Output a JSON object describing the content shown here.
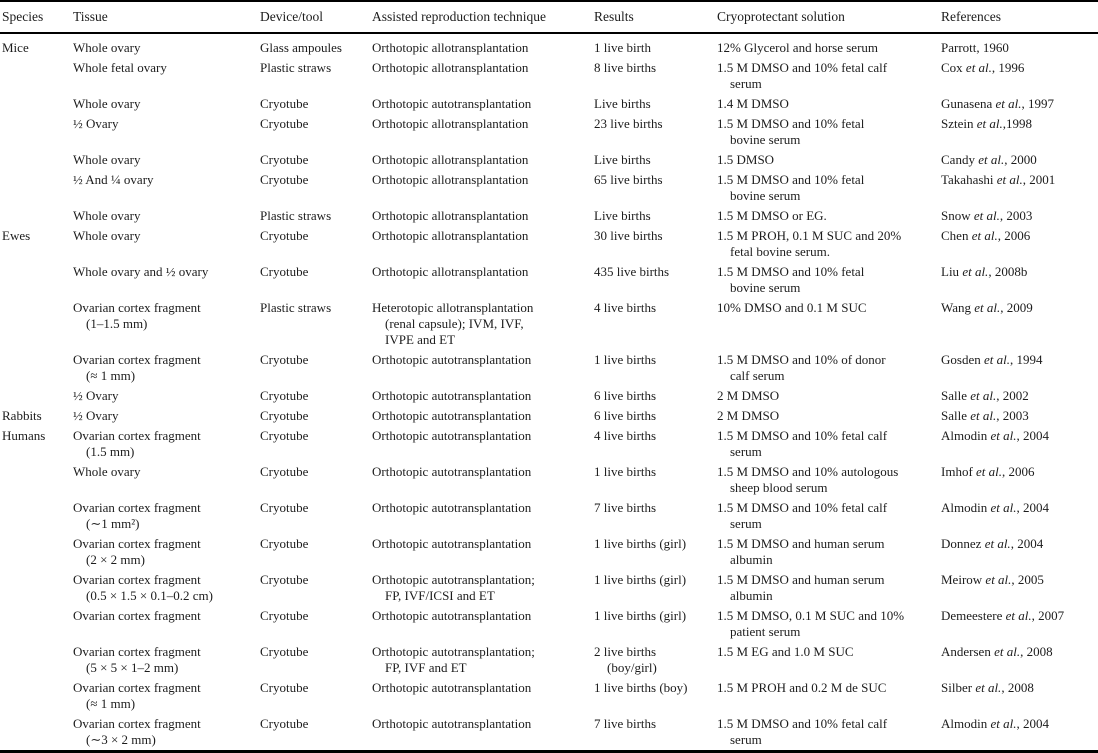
{
  "columns": [
    "Species",
    "Tissue",
    "Device/tool",
    "Assisted reproduction technique",
    "Results",
    "Cryoprotectant solution",
    "References"
  ],
  "rows": [
    {
      "species": "Mice",
      "tissue": "Whole ovary",
      "device": "Glass ampoules",
      "technique": "Orthotopic allotransplantation",
      "results": "1 live birth",
      "cryo": "12% Glycerol and horse serum",
      "ref": {
        "author": "Parrott",
        "etal": "",
        "tail": ", 1960"
      }
    },
    {
      "species": "",
      "tissue": "Whole fetal ovary",
      "device": "Plastic straws",
      "technique": "Orthotopic allotransplantation",
      "results": "8 live births",
      "cryo": "1.5 M DMSO and 10% fetal calf\nserum",
      "ref": {
        "author": "Cox",
        "etal": " et al.",
        "tail": ", 1996"
      }
    },
    {
      "species": "",
      "tissue": "Whole ovary",
      "device": "Cryotube",
      "technique": "Orthotopic autotransplantation",
      "results": "Live births",
      "cryo": "1.4 M DMSO",
      "ref": {
        "author": "Gunasena",
        "etal": " et al.",
        "tail": ", 1997"
      }
    },
    {
      "species": "",
      "tissue": "½ Ovary",
      "device": "Cryotube",
      "technique": "Orthotopic allotransplantation",
      "results": "23 live births",
      "cryo": "1.5 M DMSO and 10% fetal\nbovine serum",
      "ref": {
        "author": "Sztein",
        "etal": " et al.",
        "tail": ",1998"
      }
    },
    {
      "species": "",
      "tissue": "Whole ovary",
      "device": "Cryotube",
      "technique": "Orthotopic allotransplantation",
      "results": "Live births",
      "cryo": "1.5 DMSO",
      "ref": {
        "author": "Candy",
        "etal": " et al.",
        "tail": ", 2000"
      }
    },
    {
      "species": "",
      "tissue": "½ And ¼ ovary",
      "device": "Cryotube",
      "technique": "Orthotopic allotransplantation",
      "results": "65 live births",
      "cryo": "1.5 M DMSO and 10% fetal\nbovine serum",
      "ref": {
        "author": "Takahashi",
        "etal": " et al.",
        "tail": ", 2001"
      }
    },
    {
      "species": "",
      "tissue": "Whole ovary",
      "device": "Plastic straws",
      "technique": "Orthotopic allotransplantation",
      "results": "Live births",
      "cryo": "1.5 M DMSO or EG.",
      "ref": {
        "author": "Snow",
        "etal": " et al.",
        "tail": ", 2003"
      }
    },
    {
      "species": "Ewes",
      "tissue": "Whole ovary",
      "device": "Cryotube",
      "technique": "Orthotopic allotransplantation",
      "results": "30 live births",
      "cryo": "1.5 M PROH, 0.1 M SUC and 20%\nfetal bovine serum.",
      "ref": {
        "author": "Chen",
        "etal": " et al.",
        "tail": ", 2006"
      }
    },
    {
      "species": "",
      "tissue": "Whole ovary and ½ ovary",
      "device": "Cryotube",
      "technique": "Orthotopic allotransplantation",
      "results": "435 live births",
      "cryo": "1.5 M DMSO and 10% fetal\nbovine serum",
      "ref": {
        "author": "Liu",
        "etal": " et al.",
        "tail": ", 2008b"
      }
    },
    {
      "species": "",
      "tissue": "Ovarian cortex fragment\n(1–1.5 mm)",
      "device": "Plastic straws",
      "technique": "Heterotopic allotransplantation\n(renal capsule); IVM, IVF,\nIVPE and ET",
      "results": "4 live births",
      "cryo": "10% DMSO and 0.1 M SUC",
      "ref": {
        "author": "Wang",
        "etal": " et al.",
        "tail": ", 2009"
      }
    },
    {
      "species": "",
      "tissue": "Ovarian cortex fragment\n(≈ 1 mm)",
      "device": "Cryotube",
      "technique": "Orthotopic autotransplantation",
      "results": "1 live births",
      "cryo": "1.5 M DMSO and 10% of donor\ncalf serum",
      "ref": {
        "author": "Gosden",
        "etal": " et al.",
        "tail": ", 1994"
      }
    },
    {
      "species": "",
      "tissue": "½ Ovary",
      "device": "Cryotube",
      "technique": "Orthotopic autotransplantation",
      "results": "6 live births",
      "cryo": "2 M DMSO",
      "ref": {
        "author": "Salle",
        "etal": " et al.",
        "tail": ", 2002"
      }
    },
    {
      "species": "Rabbits",
      "tissue": "½ Ovary",
      "device": "Cryotube",
      "technique": "Orthotopic autotransplantation",
      "results": "6 live births",
      "cryo": "2 M DMSO",
      "ref": {
        "author": "Salle",
        "etal": " et al.",
        "tail": ", 2003"
      }
    },
    {
      "species": "Humans",
      "tissue": "Ovarian cortex fragment\n(1.5 mm)",
      "device": "Cryotube",
      "technique": "Orthotopic autotransplantation",
      "results": "4 live births",
      "cryo": "1.5 M DMSO and 10% fetal calf\nserum",
      "ref": {
        "author": "Almodin",
        "etal": " et al.",
        "tail": ", 2004"
      }
    },
    {
      "species": "",
      "tissue": "Whole ovary",
      "device": "Cryotube",
      "technique": "Orthotopic autotransplantation",
      "results": "1 live births",
      "cryo": "1.5 M DMSO and 10% autologous\nsheep blood serum",
      "ref": {
        "author": "Imhof",
        "etal": " et al.",
        "tail": ", 2006"
      }
    },
    {
      "species": "",
      "tissue": "Ovarian cortex fragment\n(∼1 mm²)",
      "device": "Cryotube",
      "technique": "Orthotopic autotransplantation",
      "results": "7 live births",
      "cryo": "1.5 M DMSO and 10% fetal calf\nserum",
      "ref": {
        "author": "Almodin",
        "etal": " et al.",
        "tail": ", 2004"
      }
    },
    {
      "species": "",
      "tissue": "Ovarian cortex fragment\n(2 × 2 mm)",
      "device": "Cryotube",
      "technique": "Orthotopic autotransplantation",
      "results": "1 live births (girl)",
      "cryo": "1.5 M DMSO and human serum\nalbumin",
      "ref": {
        "author": "Donnez",
        "etal": " et al.",
        "tail": ", 2004"
      }
    },
    {
      "species": "",
      "tissue": "Ovarian cortex fragment\n(0.5 × 1.5 × 0.1–0.2 cm)",
      "device": "Cryotube",
      "technique": "Orthotopic autotransplantation;\nFP, IVF/ICSI and ET",
      "results": "1 live births (girl)",
      "cryo": "1.5 M DMSO and human serum\nalbumin",
      "ref": {
        "author": "Meirow",
        "etal": " et al.",
        "tail": ", 2005"
      }
    },
    {
      "species": "",
      "tissue": "Ovarian cortex fragment",
      "device": "Cryotube",
      "technique": "Orthotopic autotransplantation",
      "results": "1 live births (girl)",
      "cryo": "1.5 M DMSO, 0.1 M SUC and 10%\npatient serum",
      "ref": {
        "author": "Demeestere",
        "etal": " et al.",
        "tail": ", 2007"
      }
    },
    {
      "species": "",
      "tissue": "Ovarian cortex fragment\n(5 × 5 × 1–2 mm)",
      "device": "Cryotube",
      "technique": "Orthotopic autotransplantation;\nFP, IVF and ET",
      "results": "2 live births\n(boy/girl)",
      "cryo": "1.5 M EG and 1.0 M SUC",
      "ref": {
        "author": "Andersen",
        "etal": " et al.",
        "tail": ", 2008"
      }
    },
    {
      "species": "",
      "tissue": "Ovarian cortex fragment\n(≈ 1 mm)",
      "device": "Cryotube",
      "technique": "Orthotopic autotransplantation",
      "results": "1 live births (boy)",
      "cryo": "1.5 M PROH and 0.2 M de SUC",
      "ref": {
        "author": "Silber",
        "etal": " et al.",
        "tail": ", 2008"
      }
    },
    {
      "species": "",
      "tissue": "Ovarian cortex fragment\n(∼3 × 2 mm)",
      "device": "Cryotube",
      "technique": "Orthotopic autotransplantation",
      "results": "7 live births",
      "cryo": "1.5 M DMSO and 10% fetal calf\nserum",
      "ref": {
        "author": "Almodin",
        "etal": " et al.",
        "tail": ", 2004"
      }
    }
  ]
}
